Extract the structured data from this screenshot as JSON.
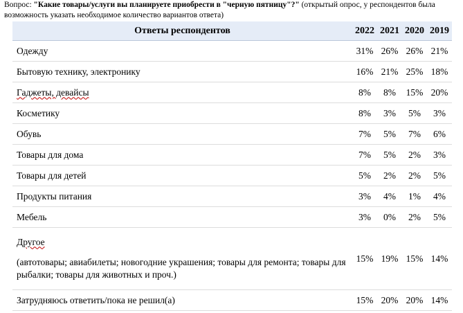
{
  "question": {
    "prefix": "Вопрос: ",
    "text": "\"Какие товары/услуги вы планируете приобрести в \"черную пятницу\"?\"",
    "suffix": " (открытый опрос, у респондентов была возможность указать необходимое количество вариантов ответа)"
  },
  "table": {
    "header": {
      "label": "Ответы респондентов",
      "years": [
        "2022",
        "2021",
        "2020",
        "2019"
      ]
    },
    "rows": [
      {
        "label": "Одежду",
        "values": [
          "31%",
          "26%",
          "26%",
          "21%"
        ]
      },
      {
        "label": "Бытовую технику, электронику",
        "values": [
          "16%",
          "21%",
          "25%",
          "18%"
        ]
      },
      {
        "label": "Гаджеты, девайсы",
        "values": [
          "8%",
          "8%",
          "15%",
          "20%"
        ]
      },
      {
        "label": "Косметику",
        "values": [
          "8%",
          "3%",
          "5%",
          "3%"
        ]
      },
      {
        "label": "Обувь",
        "values": [
          "7%",
          "5%",
          "7%",
          "6%"
        ]
      },
      {
        "label": "Товары для дома",
        "values": [
          "7%",
          "5%",
          "2%",
          "3%"
        ]
      },
      {
        "label": "Товары для детей",
        "values": [
          "5%",
          "2%",
          "2%",
          "5%"
        ]
      },
      {
        "label": "Продукты питания",
        "values": [
          "3%",
          "4%",
          "1%",
          "4%"
        ]
      },
      {
        "label": "Мебель",
        "values": [
          "3%",
          "0%",
          "2%",
          "5%"
        ]
      },
      {
        "label": "Другое",
        "note": "(автотовары; авиабилеты; новогодние украшения; товары для ремонта; товары для рыбалки; товары для животных и проч.)",
        "values": [
          "15%",
          "19%",
          "15%",
          "14%"
        ]
      },
      {
        "label": "Затрудняюсь ответить/пока не решил(а)",
        "values": [
          "15%",
          "20%",
          "20%",
          "14%"
        ]
      }
    ]
  }
}
